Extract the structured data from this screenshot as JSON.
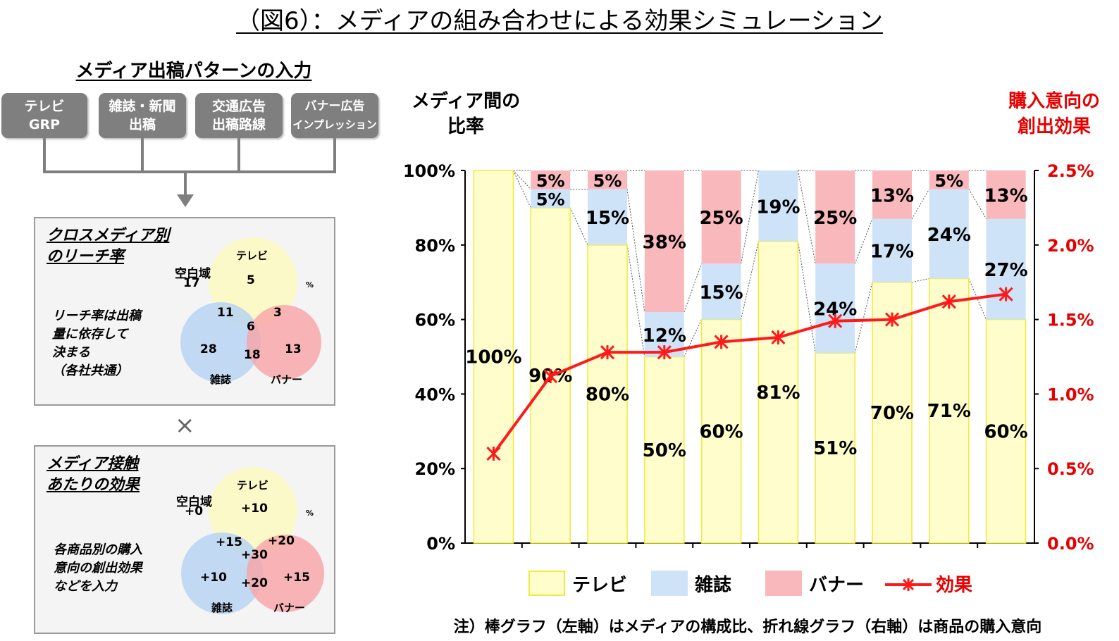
{
  "figure_title": "（図6）：メディアの組み合わせによる効果シミュレーション",
  "input_heading": "メディア出稿パターンの入力",
  "input_boxes": [
    {
      "line1": "テレビ",
      "line2": "GRP"
    },
    {
      "line1": "雑誌・新聞",
      "line2": "出稿"
    },
    {
      "line1": "交通広告",
      "line2": "出稿路線"
    },
    {
      "line1": "バナー広告",
      "line2": "インプレッション"
    }
  ],
  "times_symbol": "×",
  "reach_panel": {
    "title_line1": "クロスメディア別",
    "title_line2": "のリーチ率",
    "note_lines": [
      "リーチ率は出稿",
      "量に依存して",
      "決まる",
      "（各社共通）"
    ],
    "unit": "%",
    "blank_label": "空白域",
    "blank_value": "17",
    "circle_tv": "テレビ",
    "circle_mag": "雑誌",
    "circle_banner": "バナー",
    "v_tv": "5",
    "v_tv_mag": "11",
    "v_tv_banner": "3",
    "v_all": "6",
    "v_mag": "28",
    "v_mag_banner": "18",
    "v_banner": "13"
  },
  "effect_panel": {
    "title_line1": "メディア接触",
    "title_line2": "あたりの効果",
    "note_lines": [
      "各商品別の購入",
      "意向の創出効果",
      "などを入力"
    ],
    "unit": "%",
    "blank_label": "空白域",
    "blank_value": "+0",
    "circle_tv": "テレビ",
    "circle_mag": "雑誌",
    "circle_banner": "バナー",
    "v_tv": "+10",
    "v_tv_mag": "+15",
    "v_tv_banner": "+20",
    "v_all": "+30",
    "v_mag": "+10",
    "v_mag_banner": "+20",
    "v_banner": "+15"
  },
  "chart_header_left": [
    "メディア間の",
    "比率"
  ],
  "chart_header_right": [
    "購入意向の",
    "創出効果"
  ],
  "colors": {
    "tv": "#fffdcc",
    "tv_border": "#f0ea3a",
    "mag": "#cfe3f8",
    "banner": "#f9b9bc",
    "effect": "#ff1a1a",
    "right_axis_text": "#e60000"
  },
  "chart_data": {
    "type": "bar",
    "stacked": true,
    "categories": [
      "",
      "",
      "",
      "",
      "",
      "",
      "",
      "",
      "",
      ""
    ],
    "series": [
      {
        "name": "テレビ",
        "values": [
          100,
          90,
          80,
          50,
          60,
          81,
          51,
          70,
          71,
          60
        ]
      },
      {
        "name": "雑誌",
        "values": [
          0,
          5,
          15,
          12,
          15,
          19,
          24,
          17,
          24,
          27
        ]
      },
      {
        "name": "バナー",
        "values": [
          0,
          5,
          5,
          38,
          25,
          0,
          25,
          13,
          5,
          13
        ]
      }
    ],
    "bar_labels": [
      {
        "tv": "100%",
        "mag": "",
        "banner": ""
      },
      {
        "tv": "90%",
        "mag": "5%",
        "banner": "5%"
      },
      {
        "tv": "80%",
        "mag": "15%",
        "banner": "5%"
      },
      {
        "tv": "50%",
        "mag": "12%",
        "banner": "38%"
      },
      {
        "tv": "60%",
        "mag": "15%",
        "banner": "25%"
      },
      {
        "tv": "81%",
        "mag": "19%",
        "banner": ""
      },
      {
        "tv": "51%",
        "mag": "24%",
        "banner": "25%"
      },
      {
        "tv": "70%",
        "mag": "17%",
        "banner": "13%"
      },
      {
        "tv": "71%",
        "mag": "24%",
        "banner": "5%"
      },
      {
        "tv": "60%",
        "mag": "27%",
        "banner": "13%"
      }
    ],
    "line_series": {
      "name": "効果",
      "axis": "right",
      "values": [
        0.6,
        1.12,
        1.28,
        1.28,
        1.35,
        1.38,
        1.49,
        1.5,
        1.62,
        1.67
      ]
    },
    "left_axis": {
      "ylim": [
        0,
        100
      ],
      "ticks": [
        "0%",
        "20%",
        "40%",
        "60%",
        "80%",
        "100%"
      ]
    },
    "right_axis": {
      "ylim": [
        0,
        2.5
      ],
      "ticks": [
        "0.0%",
        "0.5%",
        "1.0%",
        "1.5%",
        "2.0%",
        "2.5%"
      ]
    },
    "legend": [
      "テレビ",
      "雑誌",
      "バナー",
      "効果"
    ],
    "legend_position": "bottom"
  },
  "footnote": "注）棒グラフ（左軸）はメディアの構成比、折れ線グラフ（右軸）は商品の購入意向"
}
